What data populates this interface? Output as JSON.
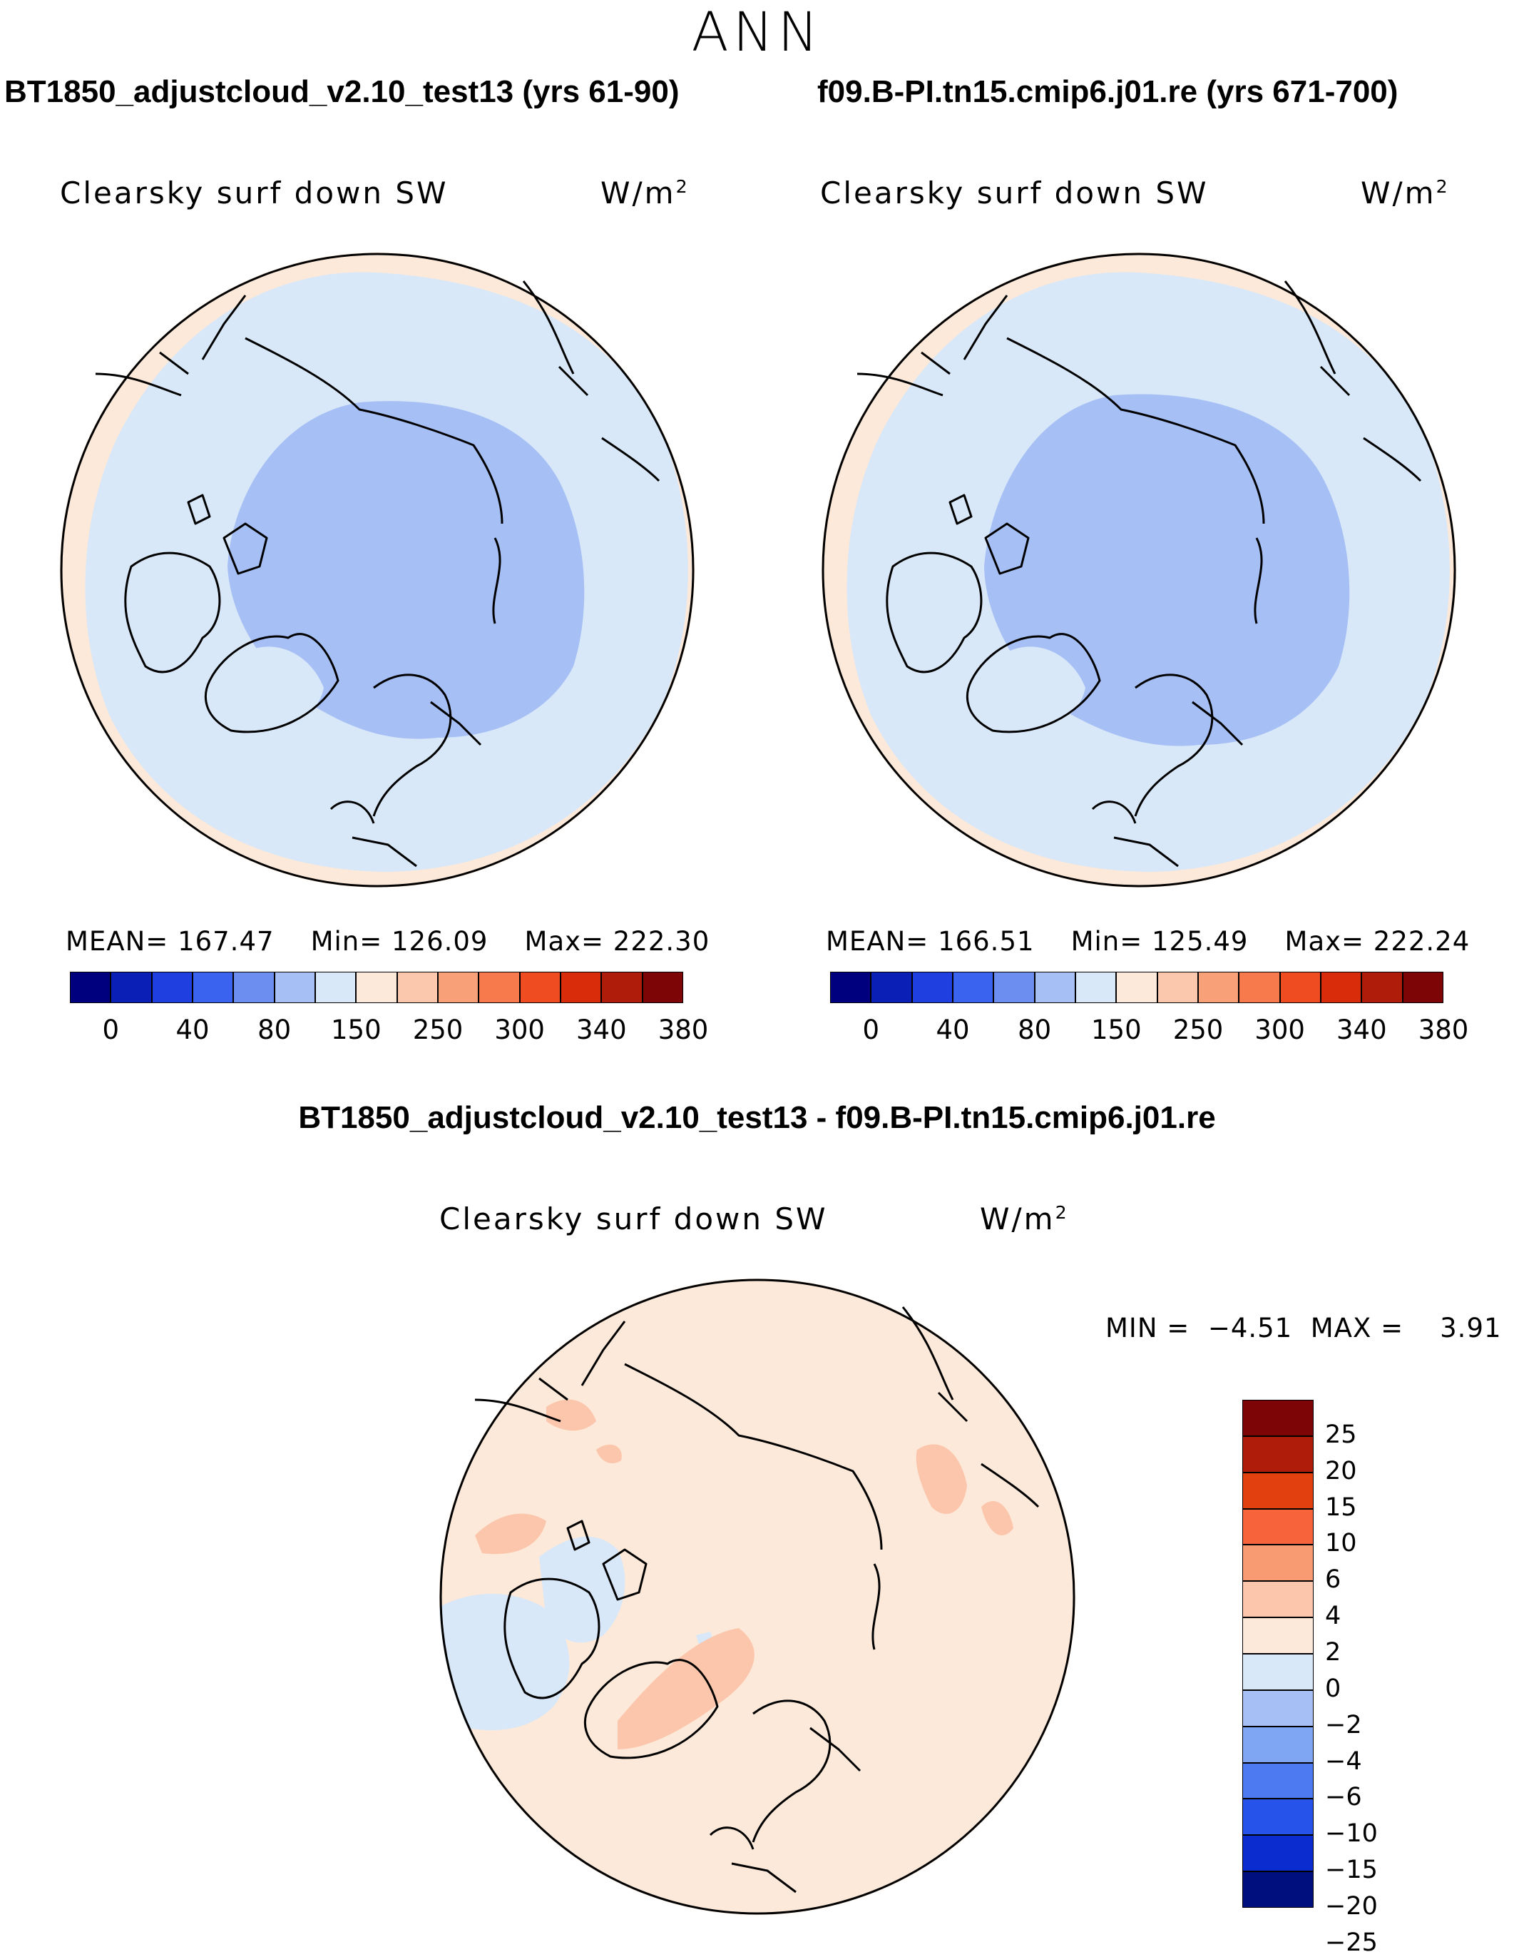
{
  "title": "ANN",
  "panels": [
    {
      "case_label": "BT1850_adjustcloud_v2.10_test13 (yrs 61-90)",
      "variable": "Clearsky surf down SW",
      "units_base": "W/m",
      "units_exp": "2",
      "stats": {
        "mean_label": "MEAN=",
        "mean": "167.47",
        "min_label": "Min=",
        "min": "126.09",
        "max_label": "Max=",
        "max": "222.30"
      }
    },
    {
      "case_label": "f09.B-PI.tn15.cmip6.j01.re (yrs 671-700)",
      "variable": "Clearsky surf down SW",
      "units_base": "W/m",
      "units_exp": "2",
      "stats": {
        "mean_label": "MEAN=",
        "mean": "166.51",
        "min_label": "Min=",
        "min": "125.49",
        "max_label": "Max=",
        "max": "222.24"
      }
    }
  ],
  "diff_panel": {
    "case_label": "BT1850_adjustcloud_v2.10_test13 - f09.B-PI.tn15.cmip6.j01.re",
    "variable": "Clearsky surf down SW",
    "units_base": "W/m",
    "units_exp": "2",
    "stats": {
      "min_label": "MIN =",
      "min": "−4.51",
      "max_label": "MAX =",
      "max": "3.91"
    }
  },
  "colorbar_main": {
    "colors": [
      "#00007f",
      "#0a1fb5",
      "#1f3fe0",
      "#3a63f0",
      "#6b8ef0",
      "#a6bff5",
      "#d8e8f8",
      "#fde9d9",
      "#fbc7ad",
      "#f8a077",
      "#f77a4c",
      "#ef4c22",
      "#d92c0b",
      "#b01c0a",
      "#7e0506"
    ],
    "tick_labels": [
      "0",
      "40",
      "80",
      "150",
      "250",
      "300",
      "340",
      "380"
    ]
  },
  "colorbar_diff": {
    "colors": [
      "#7e0506",
      "#b01c0a",
      "#e2400f",
      "#f7643c",
      "#f89a72",
      "#fbc6ab",
      "#fde9d9",
      "#d8e8f8",
      "#a6bff5",
      "#7ea6f2",
      "#4d7af0",
      "#2654ea",
      "#0b2dd0",
      "#000f7e"
    ],
    "tick_labels": [
      "25",
      "20",
      "15",
      "10",
      "6",
      "4",
      "2",
      "0",
      "−2",
      "−4",
      "−6",
      "−10",
      "−15",
      "−20",
      "−25"
    ]
  },
  "map_colors": {
    "outer_band": "#fde9d9",
    "mid_zone": "#d8e8f8",
    "inner_zone": "#a6bff5",
    "diff_base": "#fde9d9",
    "diff_pos": "#fbc6ab",
    "diff_neg": "#d8e8f8",
    "coast": "#000000"
  }
}
